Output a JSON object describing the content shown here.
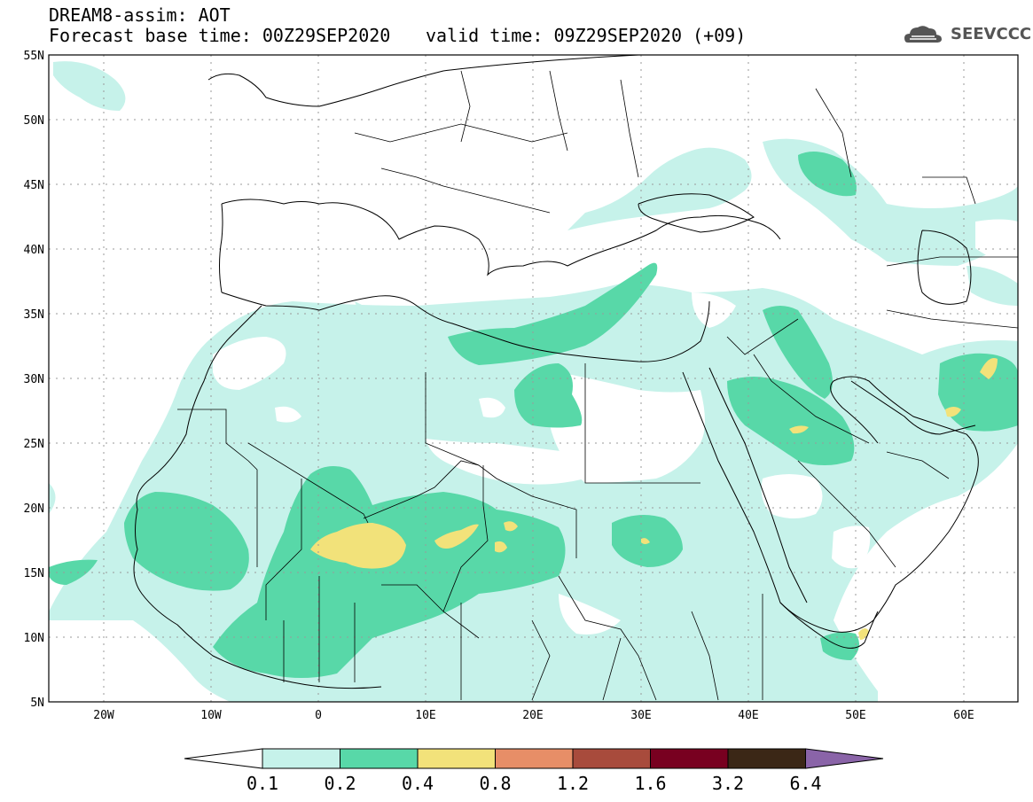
{
  "header": {
    "title": "DREAM8-assim: AOT",
    "base_time": "Forecast base time: 00Z29SEP2020",
    "valid_time": "valid time: 09Z29SEP2020 (+09)",
    "logo_text": "SEEVCCC"
  },
  "map": {
    "lat_labels": [
      "55N",
      "50N",
      "45N",
      "40N",
      "35N",
      "30N",
      "25N",
      "20N",
      "15N",
      "10N",
      "5N"
    ],
    "lon_labels": [
      "20W",
      "10W",
      "0",
      "10E",
      "20E",
      "30E",
      "40E",
      "50E",
      "60E"
    ],
    "lon_range": [
      -25,
      65
    ],
    "lat_range": [
      5,
      55
    ]
  },
  "colorbar": {
    "labels": [
      "0.1",
      "0.2",
      "0.4",
      "0.8",
      "1.2",
      "1.6",
      "3.2",
      "6.4"
    ],
    "colors": [
      "#ffffff",
      "#c6f2ea",
      "#58d8a8",
      "#f2e27a",
      "#e78e67",
      "#a84b3c",
      "#780020",
      "#3b2716",
      "#8a64a8"
    ]
  }
}
